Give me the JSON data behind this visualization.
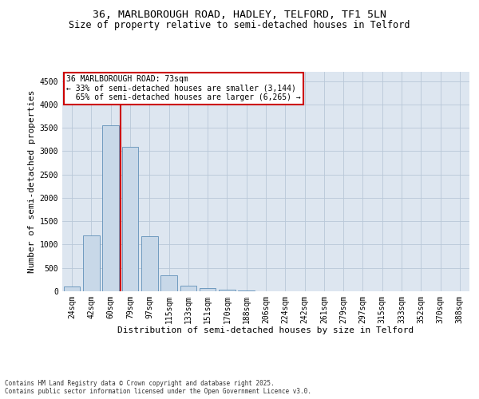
{
  "title1": "36, MARLBOROUGH ROAD, HADLEY, TELFORD, TF1 5LN",
  "title2": "Size of property relative to semi-detached houses in Telford",
  "xlabel": "Distribution of semi-detached houses by size in Telford",
  "ylabel": "Number of semi-detached properties",
  "categories": [
    "24sqm",
    "42sqm",
    "60sqm",
    "79sqm",
    "97sqm",
    "115sqm",
    "133sqm",
    "151sqm",
    "170sqm",
    "188sqm",
    "206sqm",
    "224sqm",
    "242sqm",
    "261sqm",
    "279sqm",
    "297sqm",
    "315sqm",
    "333sqm",
    "352sqm",
    "370sqm",
    "388sqm"
  ],
  "values": [
    100,
    1200,
    3550,
    3100,
    1175,
    350,
    120,
    70,
    40,
    10,
    5,
    2,
    1,
    0,
    0,
    0,
    0,
    0,
    0,
    0,
    0
  ],
  "bar_color": "#c8d8e8",
  "bar_edge_color": "#6090b8",
  "vline_color": "#cc0000",
  "vline_pos": 2.5,
  "property_label": "36 MARLBOROUGH ROAD: 73sqm",
  "pct_smaller": "33% of semi-detached houses are smaller (3,144)",
  "pct_larger": "65% of semi-detached houses are larger (6,265)",
  "annotation_box_color": "#cc0000",
  "ylim": [
    0,
    4700
  ],
  "yticks": [
    0,
    500,
    1000,
    1500,
    2000,
    2500,
    3000,
    3500,
    4000,
    4500
  ],
  "footnote1": "Contains HM Land Registry data © Crown copyright and database right 2025.",
  "footnote2": "Contains public sector information licensed under the Open Government Licence v3.0.",
  "background_color": "#ffffff",
  "plot_bg_color": "#dde6f0",
  "grid_color": "#b8c8d8",
  "title1_fontsize": 9.5,
  "title2_fontsize": 8.5,
  "xlabel_fontsize": 8,
  "ylabel_fontsize": 8,
  "tick_fontsize": 7,
  "annotation_fontsize": 7,
  "footnote_fontsize": 5.5
}
